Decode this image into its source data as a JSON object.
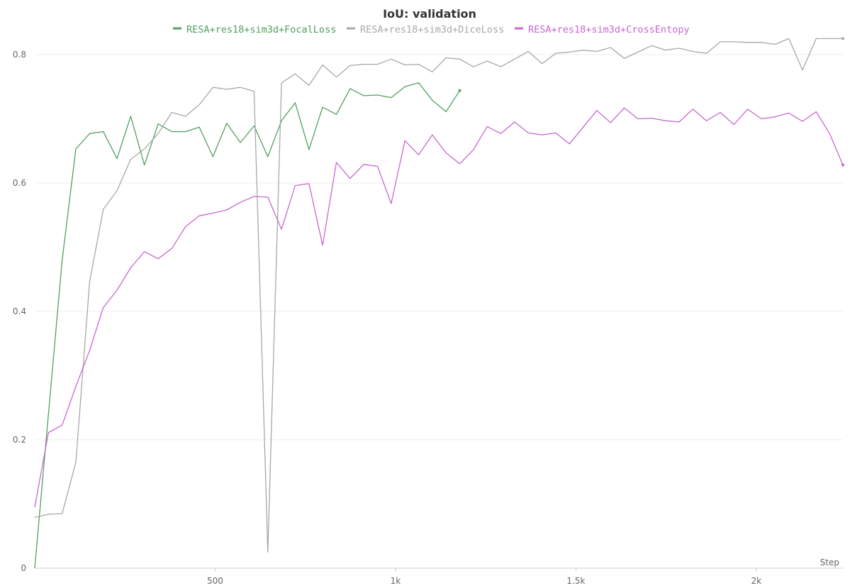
{
  "chart_data": {
    "type": "line",
    "title": "IoU: validation",
    "xlabel": "Step",
    "ylabel": "",
    "xlim": [
      0,
      2240
    ],
    "ylim": [
      0,
      0.8
    ],
    "legend_position": "top-center",
    "grid": true,
    "x_ticks": [
      {
        "value": 500,
        "label": "500"
      },
      {
        "value": 1000,
        "label": "1k"
      },
      {
        "value": 1500,
        "label": "1.5k"
      },
      {
        "value": 2000,
        "label": "2k"
      }
    ],
    "y_ticks": [
      {
        "value": 0,
        "label": "0"
      },
      {
        "value": 0.2,
        "label": "0.2"
      },
      {
        "value": 0.4,
        "label": "0.4"
      },
      {
        "value": 0.6,
        "label": "0.6"
      },
      {
        "value": 0.8,
        "label": "0.8"
      }
    ],
    "series": [
      {
        "name": "RESA+res18+sim3d+FocalLoss",
        "color": "#52a060",
        "x": [
          0,
          76,
          114,
          152,
          190,
          228,
          266,
          304,
          342,
          380,
          418,
          456,
          494,
          532,
          570,
          608,
          646,
          684,
          722,
          760,
          798,
          836,
          874,
          912,
          950,
          988,
          1026,
          1064,
          1102,
          1140,
          1178
        ],
        "y": [
          0.0,
          0.48,
          0.653,
          0.677,
          0.68,
          0.638,
          0.704,
          0.628,
          0.692,
          0.68,
          0.68,
          0.687,
          0.641,
          0.693,
          0.663,
          0.689,
          0.641,
          0.697,
          0.725,
          0.652,
          0.718,
          0.707,
          0.747,
          0.736,
          0.737,
          0.733,
          0.75,
          0.756,
          0.729,
          0.711,
          0.744
        ]
      },
      {
        "name": "RESA+res18+sim3d+DiceLoss",
        "color": "#a8a8a8",
        "x": [
          0,
          38,
          76,
          114,
          152,
          190,
          228,
          266,
          304,
          342,
          380,
          418,
          456,
          494,
          532,
          570,
          608,
          646,
          684,
          722,
          760,
          798,
          836,
          874,
          912,
          950,
          988,
          1026,
          1064,
          1102,
          1140,
          1178,
          1216,
          1254,
          1292,
          1330,
          1368,
          1406,
          1444,
          1482,
          1520,
          1558,
          1596,
          1634,
          1672,
          1710,
          1748,
          1786,
          1824,
          1862,
          1900,
          1938,
          1976,
          2014,
          2052,
          2090,
          2128,
          2166,
          2204,
          2240
        ],
        "y": [
          0.079,
          0.084,
          0.085,
          0.165,
          0.446,
          0.559,
          0.588,
          0.637,
          0.653,
          0.677,
          0.71,
          0.704,
          0.722,
          0.749,
          0.746,
          0.749,
          0.743,
          0.025,
          0.756,
          0.77,
          0.752,
          0.784,
          0.765,
          0.783,
          0.785,
          0.785,
          0.793,
          0.784,
          0.785,
          0.773,
          0.795,
          0.793,
          0.781,
          0.79,
          0.781,
          0.793,
          0.805,
          0.786,
          0.802,
          0.804,
          0.807,
          0.805,
          0.811,
          0.794,
          0.804,
          0.814,
          0.807,
          0.81,
          0.805,
          0.802,
          0.82,
          0.82,
          0.819,
          0.819,
          0.816,
          0.825,
          0.776,
          0.825,
          0.825,
          0.825
        ]
      },
      {
        "name": "RESA+res18+sim3d+CrossEntopy",
        "color": "#c768cf",
        "x": [
          0,
          38,
          76,
          114,
          152,
          190,
          228,
          266,
          304,
          342,
          380,
          418,
          456,
          494,
          532,
          570,
          608,
          646,
          684,
          722,
          760,
          798,
          836,
          874,
          912,
          950,
          988,
          1026,
          1064,
          1102,
          1140,
          1178,
          1216,
          1254,
          1292,
          1330,
          1368,
          1406,
          1444,
          1482,
          1520,
          1558,
          1596,
          1634,
          1672,
          1710,
          1748,
          1786,
          1824,
          1862,
          1900,
          1938,
          1976,
          2014,
          2052,
          2090,
          2128,
          2166,
          2204,
          2240
        ],
        "y": [
          0.095,
          0.211,
          0.223,
          0.283,
          0.339,
          0.406,
          0.433,
          0.468,
          0.493,
          0.482,
          0.498,
          0.532,
          0.549,
          0.553,
          0.558,
          0.57,
          0.579,
          0.578,
          0.528,
          0.596,
          0.599,
          0.503,
          0.632,
          0.607,
          0.629,
          0.626,
          0.568,
          0.666,
          0.644,
          0.675,
          0.647,
          0.63,
          0.652,
          0.688,
          0.677,
          0.695,
          0.678,
          0.675,
          0.678,
          0.661,
          0.687,
          0.713,
          0.694,
          0.717,
          0.7,
          0.701,
          0.697,
          0.695,
          0.715,
          0.697,
          0.71,
          0.691,
          0.715,
          0.7,
          0.703,
          0.709,
          0.696,
          0.711,
          0.676,
          0.628
        ]
      }
    ]
  }
}
